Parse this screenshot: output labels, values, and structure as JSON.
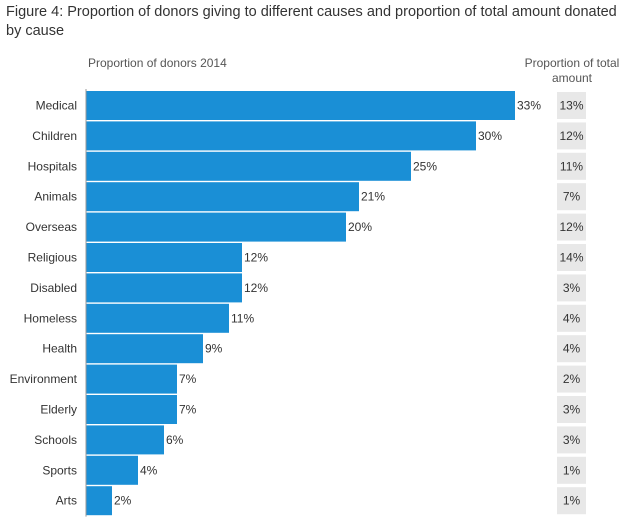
{
  "title": "Figure 4: Proportion of donors giving to different causes and proportion of total amount donated by cause",
  "bar_header": "Proportion of donors 2014",
  "amount_header": "Proportion of total amount",
  "colors": {
    "bar": "#1a8fd6",
    "amount_box": "#e8e8e8",
    "axis": "#999999",
    "text": "#333333"
  },
  "chart_data": {
    "type": "bar",
    "orientation": "horizontal",
    "title": "Figure 4: Proportion of donors giving to different causes and proportion of total amount donated by cause",
    "xlabel": "Proportion of donors 2014",
    "ylabel": "",
    "xlim": [
      0,
      36
    ],
    "categories": [
      "Medical",
      "Children",
      "Hospitals",
      "Animals",
      "Overseas",
      "Religious",
      "Disabled",
      "Homeless",
      "Health",
      "Environment",
      "Elderly",
      "Schools",
      "Sports",
      "Arts"
    ],
    "series": [
      {
        "name": "Proportion of donors 2014",
        "values": [
          33,
          30,
          25,
          21,
          20,
          12,
          12,
          11,
          9,
          7,
          7,
          6,
          4,
          2
        ],
        "unit": "%"
      },
      {
        "name": "Proportion of total amount",
        "values": [
          13,
          12,
          11,
          7,
          12,
          14,
          3,
          4,
          4,
          2,
          3,
          3,
          1,
          1
        ],
        "unit": "%"
      }
    ]
  }
}
